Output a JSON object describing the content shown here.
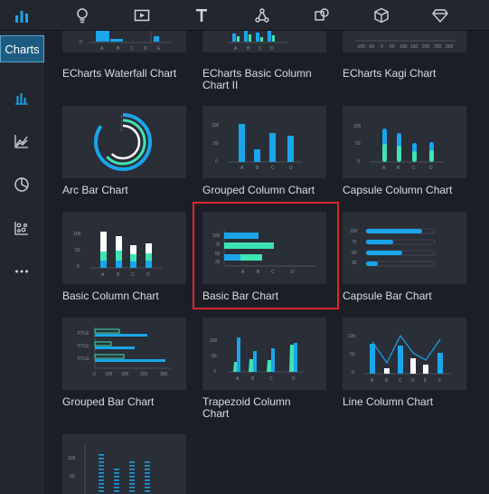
{
  "app": {
    "charts_tab_label": "Charts"
  },
  "toolbar": {
    "items": [
      "bar-chart-icon",
      "bulb-icon",
      "video-icon",
      "text-icon",
      "network-icon",
      "shapes-icon",
      "cube-icon",
      "diamond-icon"
    ]
  },
  "sidebar": {
    "items": [
      "bar-chart-icon",
      "area-chart-icon",
      "pie-chart-icon",
      "scatter-chart-icon",
      "more-icon"
    ]
  },
  "colors": {
    "accent_blue": "#1aa5ec",
    "accent_green": "#3ee4b4",
    "selection": "#d8262e"
  },
  "cards": [
    {
      "title": "ECharts Waterfall Chart"
    },
    {
      "title": "ECharts Basic Column Chart II"
    },
    {
      "title": "ECharts Kagi Chart"
    },
    {
      "title": "Arc Bar Chart"
    },
    {
      "title": "Grouped Column Chart"
    },
    {
      "title": "Capsule Column Chart"
    },
    {
      "title": "Basic Column Chart"
    },
    {
      "title": "Basic Bar Chart",
      "selected": true
    },
    {
      "title": "Capsule Bar Chart"
    },
    {
      "title": "Grouped Bar Chart"
    },
    {
      "title": "Trapezoid Column Chart"
    },
    {
      "title": "Line Column Chart"
    },
    {
      "title": ""
    }
  ],
  "thumb_text": {
    "abcde": [
      "A",
      "B",
      "C",
      "D",
      "E"
    ],
    "abcd": [
      "A",
      "B",
      "C",
      "D"
    ],
    "abcdef": [
      "A",
      "B",
      "C",
      "D",
      "E",
      "F"
    ],
    "kagi_axis": [
      "-100",
      "-50",
      "0",
      "50",
      "100",
      "150",
      "200",
      "250",
      "300"
    ],
    "y100": [
      "100",
      "50",
      "0"
    ],
    "y_bar": [
      "100",
      "75",
      "50",
      "25"
    ],
    "grouped_titles": [
      "TITLE",
      "TITLE",
      "TITLE"
    ],
    "grouped_x": [
      "0",
      "100",
      "150",
      "200",
      "250",
      "300"
    ],
    "zero": "0",
    "arc_ticks": [
      "1",
      "1",
      "1",
      "1"
    ]
  }
}
